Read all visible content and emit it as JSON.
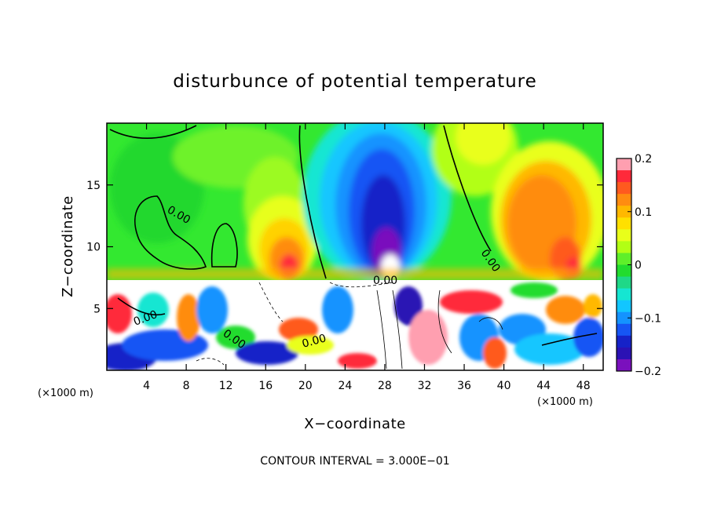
{
  "chart_data": {
    "type": "heatmap",
    "title": "disturbunce of potential temperature",
    "xlabel": "X−coordinate",
    "ylabel": "Z−coordinate",
    "x_unit": "(×1000 m)",
    "y_unit": "(×1000 m)",
    "xlim": [
      0,
      50
    ],
    "ylim": [
      0,
      20
    ],
    "x_ticks": [
      4,
      8,
      12,
      16,
      20,
      24,
      28,
      32,
      36,
      40,
      44,
      48
    ],
    "x_tick_labels": [
      "4",
      "8",
      "12",
      "16",
      "20",
      "24",
      "28",
      "32",
      "36",
      "40",
      "44",
      "48"
    ],
    "y_ticks": [
      5,
      10,
      15
    ],
    "y_tick_labels": [
      "5",
      "10",
      "15"
    ],
    "colorbar": {
      "min": -0.2,
      "max": 0.2,
      "ticks": [
        0.2,
        0.1,
        0,
        -0.1,
        -0.2
      ],
      "tick_labels": [
        "0.2",
        "0.1",
        "0",
        "−0.1",
        "−0.2"
      ],
      "colors": [
        "#ff9fb0",
        "#ff2a3a",
        "#ff5a1f",
        "#ff8c10",
        "#ffb800",
        "#ffe000",
        "#e9ff1a",
        "#b2ff14",
        "#5fef2a",
        "#22dc2e",
        "#1fd887",
        "#15e6d2",
        "#12c6ff",
        "#1493ff",
        "#1655f4",
        "#1622c8",
        "#2b12b4",
        "#7a10bd"
      ]
    },
    "contour_labels": [
      "0.00",
      "0.00",
      "0.00",
      "0.00",
      "0.00",
      "0.00"
    ],
    "contour_interval": "CONTOUR INTERVAL = 3.000E−01",
    "grid": false
  }
}
